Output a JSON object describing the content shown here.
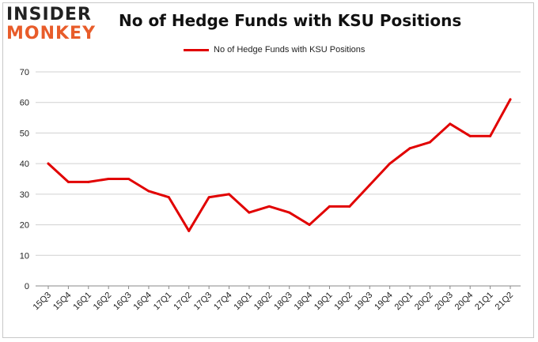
{
  "logo": {
    "line1": "INSIDER",
    "line2": "MONKEY",
    "color_dark": "#222222",
    "color_accent": "#e85c2a"
  },
  "chart_data": {
    "type": "line",
    "title": "No of Hedge Funds with KSU Positions",
    "xlabel": "",
    "ylabel": "",
    "ylim": [
      0,
      70
    ],
    "yticks": [
      0,
      10,
      20,
      30,
      40,
      50,
      60,
      70
    ],
    "grid": true,
    "legend_position": "top-center",
    "categories": [
      "15Q3",
      "15Q4",
      "16Q1",
      "16Q2",
      "16Q3",
      "16Q4",
      "17Q1",
      "17Q2",
      "17Q3",
      "17Q4",
      "18Q1",
      "18Q2",
      "18Q3",
      "18Q4",
      "19Q1",
      "19Q2",
      "19Q3",
      "19Q4",
      "20Q1",
      "20Q2",
      "20Q3",
      "20Q4",
      "21Q1",
      "21Q2"
    ],
    "series": [
      {
        "name": "No of Hedge Funds with KSU Positions",
        "color": "#e10000",
        "values": [
          40,
          34,
          34,
          35,
          35,
          31,
          29,
          18,
          29,
          30,
          24,
          26,
          24,
          20,
          26,
          26,
          33,
          40,
          45,
          47,
          53,
          49,
          49,
          61
        ]
      }
    ]
  }
}
